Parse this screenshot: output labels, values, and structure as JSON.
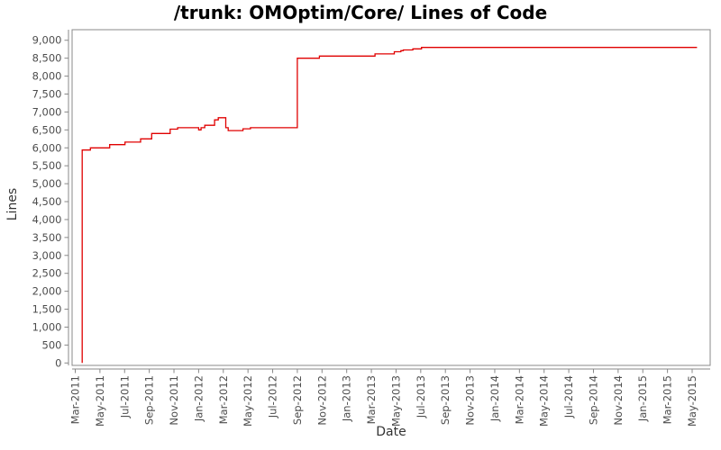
{
  "chart": {
    "title": "/trunk: OMOptim/Core/ Lines of Code",
    "xlabel": "Date",
    "ylabel": "Lines"
  },
  "colors": {
    "line": "#e00000",
    "plot_border": "#888888",
    "axis": "#888888",
    "tick_label": "#4d4d4d"
  },
  "chart_data": {
    "type": "line",
    "style": "step-after",
    "title": "/trunk: OMOptim/Core/ Lines of Code",
    "xlabel": "Date",
    "ylabel": "Lines",
    "ylim": [
      0,
      9000
    ],
    "y_tick_interval": 500,
    "grid": false,
    "legend": false,
    "x_ticks": [
      "Mar-2011",
      "May-2011",
      "Jul-2011",
      "Sep-2011",
      "Nov-2011",
      "Jan-2012",
      "Mar-2012",
      "May-2012",
      "Jul-2012",
      "Sep-2012",
      "Nov-2012",
      "Jan-2013",
      "Mar-2013",
      "May-2013",
      "Jul-2013",
      "Sep-2013",
      "Nov-2013",
      "Jan-2014",
      "Mar-2014",
      "May-2014",
      "Jul-2014",
      "Sep-2014",
      "Nov-2014",
      "Jan-2015",
      "Mar-2015",
      "May-2015"
    ],
    "y_ticks": [
      "0",
      "500",
      "1,000",
      "1,500",
      "2,000",
      "2,500",
      "3,000",
      "3,500",
      "4,000",
      "4,500",
      "5,000",
      "5,500",
      "6,000",
      "6,500",
      "7,000",
      "7,500",
      "8,000",
      "8,500",
      "9,000"
    ],
    "series": [
      {
        "name": "Lines of Code",
        "color": "#e00000",
        "points": [
          {
            "date": "2011-03-18",
            "lines": 0
          },
          {
            "date": "2011-03-18",
            "lines": 5940
          },
          {
            "date": "2011-04-08",
            "lines": 6000
          },
          {
            "date": "2011-05-25",
            "lines": 6090
          },
          {
            "date": "2011-07-02",
            "lines": 6160
          },
          {
            "date": "2011-08-10",
            "lines": 6250
          },
          {
            "date": "2011-09-07",
            "lines": 6400
          },
          {
            "date": "2011-10-22",
            "lines": 6520
          },
          {
            "date": "2011-11-10",
            "lines": 6560
          },
          {
            "date": "2012-01-01",
            "lines": 6500
          },
          {
            "date": "2012-01-07",
            "lines": 6560
          },
          {
            "date": "2012-01-16",
            "lines": 6630
          },
          {
            "date": "2012-02-10",
            "lines": 6780
          },
          {
            "date": "2012-02-19",
            "lines": 6840
          },
          {
            "date": "2012-03-07",
            "lines": 6560
          },
          {
            "date": "2012-03-13",
            "lines": 6480
          },
          {
            "date": "2012-04-19",
            "lines": 6530
          },
          {
            "date": "2012-05-07",
            "lines": 6560
          },
          {
            "date": "2012-09-01",
            "lines": 8500
          },
          {
            "date": "2012-10-25",
            "lines": 8560
          },
          {
            "date": "2013-03-10",
            "lines": 8620
          },
          {
            "date": "2013-04-27",
            "lines": 8680
          },
          {
            "date": "2013-05-13",
            "lines": 8710
          },
          {
            "date": "2013-05-19",
            "lines": 8730
          },
          {
            "date": "2013-06-12",
            "lines": 8760
          },
          {
            "date": "2013-07-03",
            "lines": 8800
          },
          {
            "date": "2015-05-13",
            "lines": 8800
          }
        ]
      }
    ]
  }
}
